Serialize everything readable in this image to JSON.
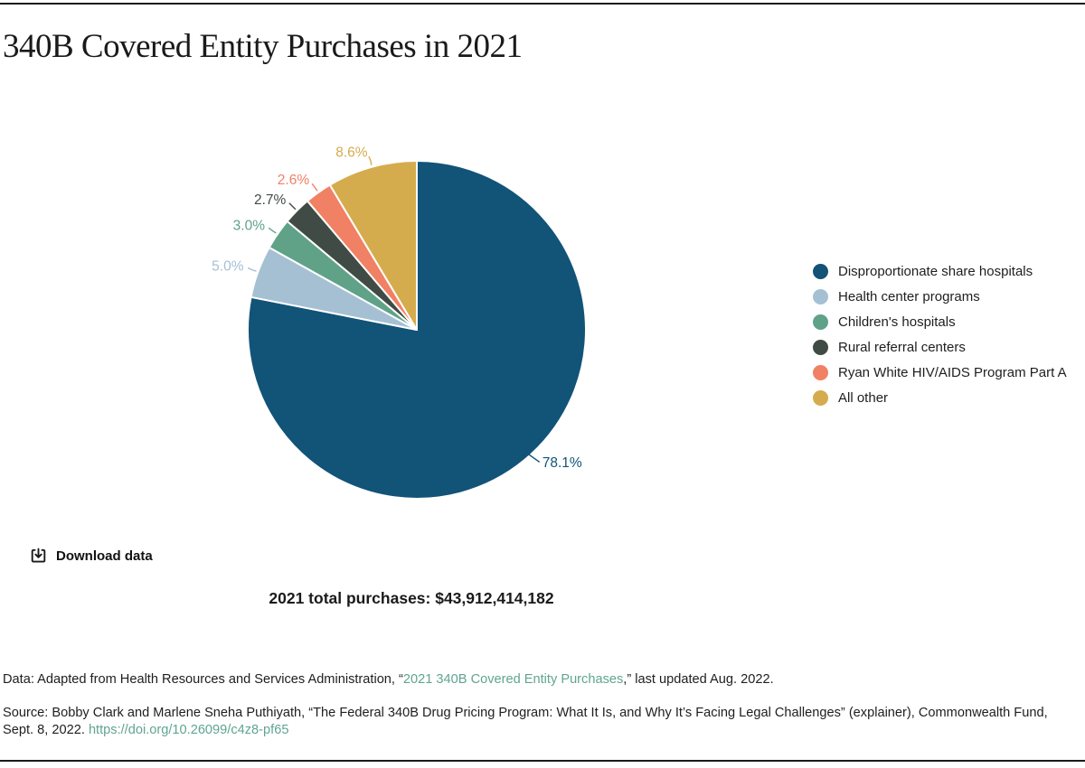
{
  "page": {
    "title": "340B Covered Entity Purchases in 2021"
  },
  "chart_data": {
    "type": "pie",
    "title": "340B Covered Entity Purchases in 2021",
    "start_angle_deg": 0,
    "direction": "clockwise",
    "legend_position": "right",
    "slices": [
      {
        "label": "Disproportionate share hospitals",
        "value": 78.1,
        "display": "78.1%",
        "color": "#125378"
      },
      {
        "label": "Health center programs",
        "value": 5.0,
        "display": "5.0%",
        "color": "#A6C0D3"
      },
      {
        "label": "Children's hospitals",
        "value": 3.0,
        "display": "3.0%",
        "color": "#5FA287"
      },
      {
        "label": "Rural referral centers",
        "value": 2.7,
        "display": "2.7%",
        "color": "#414B45"
      },
      {
        "label": "Ryan White HIV/AIDS Program Part A",
        "value": 2.6,
        "display": "2.6%",
        "color": "#F08164"
      },
      {
        "label": "All other",
        "value": 8.6,
        "display": "8.6%",
        "color": "#D5AC4D"
      }
    ],
    "annotation": "2021 total purchases: $43,912,414,182"
  },
  "toolbar": {
    "download_label": "Download data"
  },
  "summary": {
    "total_label": "2021 total purchases: $43,912,414,182"
  },
  "footer": {
    "data_prefix": "Data: Adapted from Health Resources and Services Administration, “",
    "data_link_text": "2021 340B Covered Entity Purchases",
    "data_suffix": ",” last updated Aug. 2022.",
    "source_text": "Source: Bobby Clark and Marlene Sneha Puthiyath, “The Federal 340B Drug Pricing Program: What It Is, and Why It’s Facing Legal Challenges” (explainer), Commonwealth Fund, Sept. 8, 2022. ",
    "source_link_text": "https://doi.org/10.26099/c4z8-pf65"
  },
  "colors": {
    "link": "#60A591",
    "rule": "#1A1A1A",
    "text": "#1E1E1E",
    "slice_border": "#FFFFFF"
  }
}
